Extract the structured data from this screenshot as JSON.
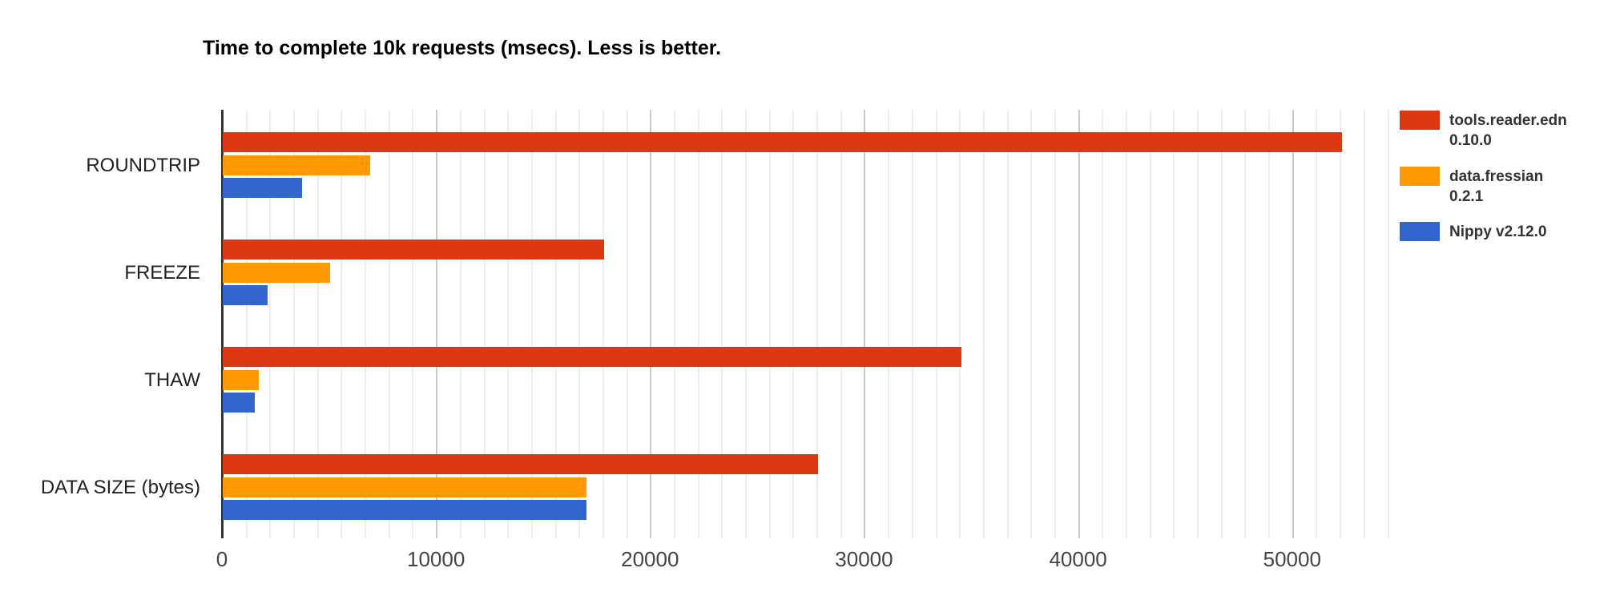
{
  "title": "Time to complete 10k requests (msecs). Less is better.",
  "chart_data": {
    "type": "bar",
    "orientation": "horizontal",
    "title": "Time to complete 10k requests (msecs). Less is better.",
    "categories": [
      "ROUNDTRIP",
      "FREEZE",
      "THAW",
      "DATA SIZE (bytes)"
    ],
    "series": [
      {
        "name": "tools.reader.edn 0.10.0",
        "legend_lines": [
          "tools.reader.edn",
          "0.10.0"
        ],
        "color": "#dc3912",
        "values": [
          52300,
          17800,
          34500,
          27800
        ]
      },
      {
        "name": "data.fressian 0.2.1",
        "legend_lines": [
          "data.fressian",
          "0.2.1"
        ],
        "color": "#ff9900",
        "values": [
          6900,
          5000,
          1700,
          17000
        ]
      },
      {
        "name": "Nippy v2.12.0",
        "legend_lines": [
          "Nippy v2.12.0"
        ],
        "color": "#3366cc",
        "values": [
          3700,
          2100,
          1500,
          17000
        ]
      }
    ],
    "xlabel": "",
    "ylabel": "",
    "axis": {
      "min": 0,
      "max": 54500,
      "tick_values": [
        0,
        10000,
        20000,
        30000,
        40000,
        50000
      ],
      "tick_labels": [
        "0",
        "10000",
        "20000",
        "30000",
        "40000",
        "50000"
      ],
      "minor_divisions_per_major": 9
    },
    "legend_position": "right",
    "grid": true
  },
  "colors": {
    "axis_line": "#333333",
    "major_grid": "#c9c9c9",
    "minor_grid": "#ededed",
    "tick_label": "#444444",
    "category_label": "#222222",
    "legend_text": "#333333",
    "title": "#000000",
    "background": "#ffffff"
  }
}
